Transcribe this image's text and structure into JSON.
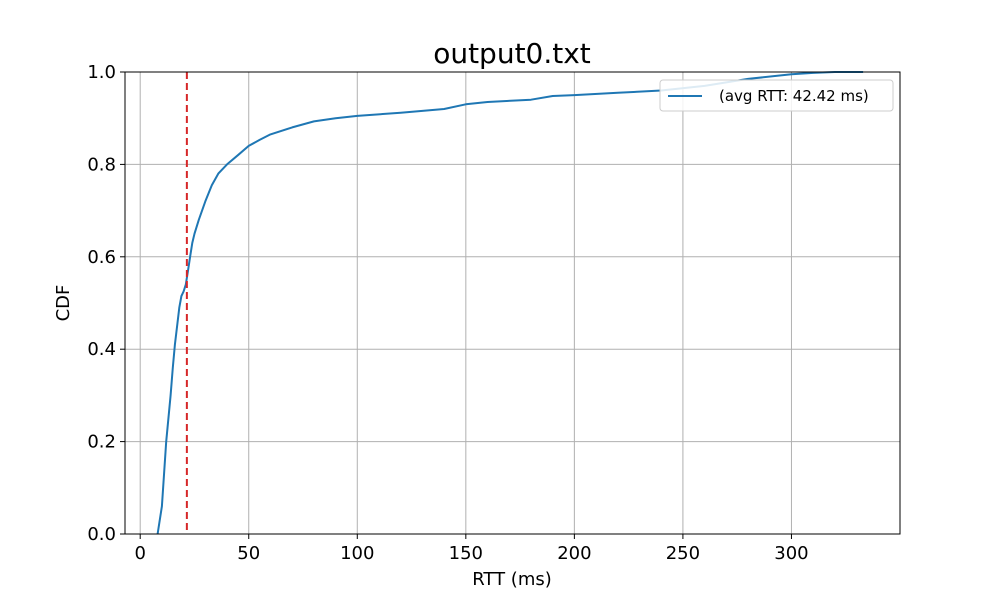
{
  "chart_data": {
    "type": "line",
    "title": "output0.txt",
    "xlabel": "RTT (ms)",
    "ylabel": "CDF",
    "xlim": [
      -7,
      350
    ],
    "ylim": [
      0.0,
      1.0
    ],
    "xticks": [
      0,
      50,
      100,
      150,
      200,
      250,
      300
    ],
    "xtick_labels": [
      "0",
      "50",
      "100",
      "150",
      "200",
      "250",
      "300"
    ],
    "yticks": [
      0.0,
      0.2,
      0.4,
      0.6,
      0.8,
      1.0
    ],
    "ytick_labels": [
      "0.0",
      "0.2",
      "0.4",
      "0.6",
      "0.8",
      "1.0"
    ],
    "grid": true,
    "legend_position": "top-right",
    "colors": {
      "series": "#1f77b4",
      "reference": "#d62728",
      "grid": "#b0b0b0"
    },
    "series": [
      {
        "name": "(avg RTT: 42.42 ms)",
        "x": [
          8,
          10,
          12,
          14,
          15,
          16,
          17,
          18,
          19,
          20,
          21,
          22,
          23,
          24,
          25,
          27,
          30,
          33,
          36,
          40,
          45,
          50,
          55,
          60,
          70,
          80,
          90,
          100,
          120,
          140,
          150,
          160,
          180,
          190,
          200,
          220,
          240,
          260,
          280,
          300,
          310,
          320,
          333
        ],
        "y": [
          0.0,
          0.06,
          0.2,
          0.3,
          0.36,
          0.41,
          0.45,
          0.49,
          0.515,
          0.525,
          0.54,
          0.57,
          0.6,
          0.63,
          0.65,
          0.68,
          0.72,
          0.755,
          0.78,
          0.8,
          0.82,
          0.84,
          0.853,
          0.865,
          0.88,
          0.893,
          0.9,
          0.905,
          0.912,
          0.92,
          0.93,
          0.935,
          0.94,
          0.948,
          0.95,
          0.955,
          0.96,
          0.97,
          0.985,
          0.995,
          0.998,
          1.0,
          1.0
        ]
      }
    ],
    "reference_line": {
      "x": 21.5,
      "style": "dashed"
    }
  }
}
